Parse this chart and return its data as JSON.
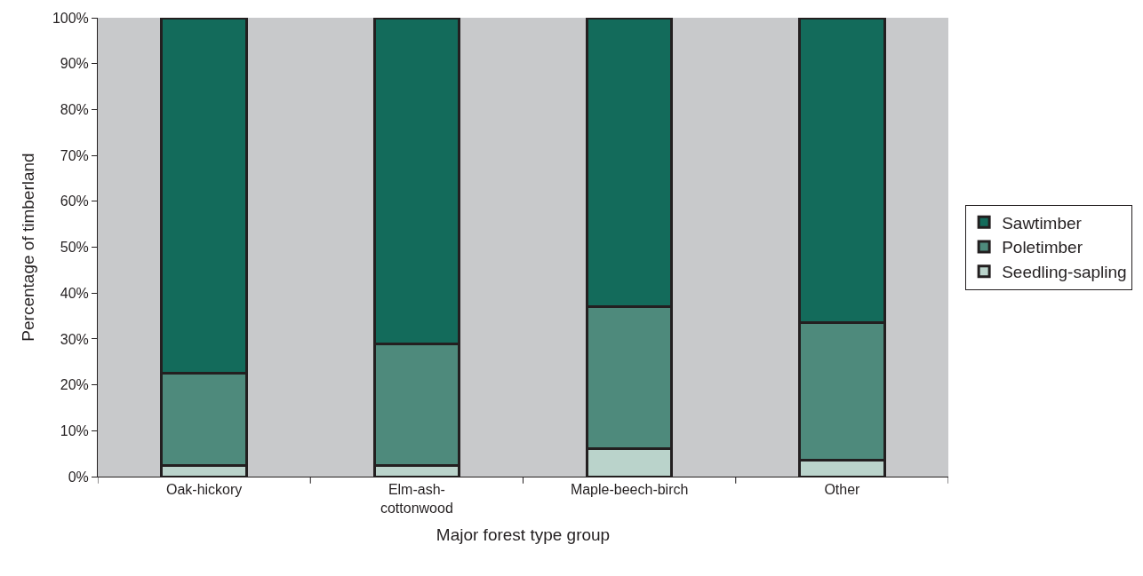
{
  "chart_data": {
    "type": "bar",
    "stacked": true,
    "xlabel": "Major forest type group",
    "ylabel": "Percentage of timberland",
    "categories": [
      "Oak-hickory",
      "Elm-ash-\ncottonwood",
      "Maple-beech-birch",
      "Other"
    ],
    "series": [
      {
        "name": "Seedling-sapling",
        "color": "#bad3cb",
        "values": [
          2.5,
          2.5,
          6,
          3.5
        ]
      },
      {
        "name": "Poletimber",
        "color": "#4e8a7c",
        "values": [
          20,
          26.5,
          31,
          30
        ]
      },
      {
        "name": "Sawtimber",
        "color": "#136b5b",
        "values": [
          77.5,
          71,
          63,
          66.5
        ]
      }
    ],
    "ylim": [
      0,
      100
    ],
    "yticks": [
      {
        "value": 0,
        "label": "0%"
      },
      {
        "value": 10,
        "label": "10%"
      },
      {
        "value": 20,
        "label": "20%"
      },
      {
        "value": 30,
        "label": "30%"
      },
      {
        "value": 40,
        "label": "40%"
      },
      {
        "value": 50,
        "label": "50%"
      },
      {
        "value": 60,
        "label": "60%"
      },
      {
        "value": 70,
        "label": "70%"
      },
      {
        "value": 80,
        "label": "80%"
      },
      {
        "value": 90,
        "label": "90%"
      },
      {
        "value": 100,
        "label": "100%"
      }
    ],
    "grid": false,
    "legend": "right"
  }
}
